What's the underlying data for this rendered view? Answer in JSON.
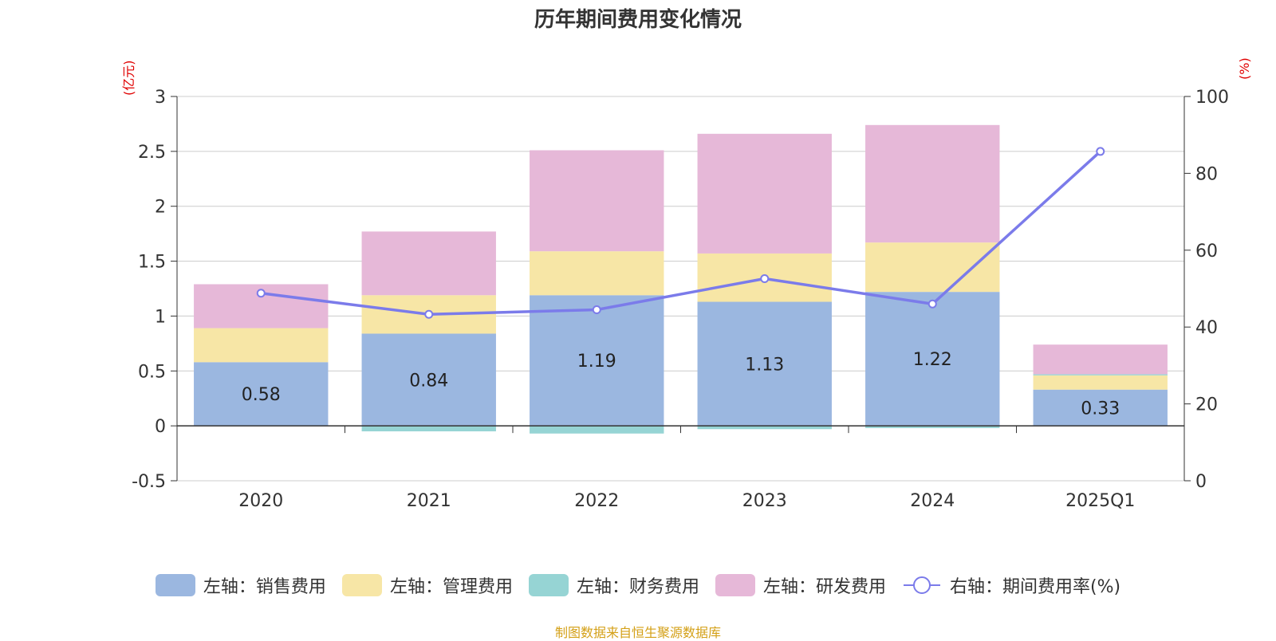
{
  "title": "历年期间费用变化情况",
  "left_unit": "(亿元)",
  "right_unit": "(%)",
  "source": "制图数据来自恒生聚源数据库",
  "legend": [
    {
      "label": "左轴：销售费用",
      "color": "#9bb7e0"
    },
    {
      "label": "左轴：管理费用",
      "color": "#f7e6a6"
    },
    {
      "label": "左轴：财务费用",
      "color": "#96d4d4"
    },
    {
      "label": "左轴：研发费用",
      "color": "#e6b8d8"
    },
    {
      "label": "右轴：期间费用率(%)",
      "color": "#7b7bea"
    }
  ],
  "chart_data": {
    "type": "bar",
    "stacked": true,
    "title": "历年期间费用变化情况",
    "categories": [
      "2020",
      "2021",
      "2022",
      "2023",
      "2024",
      "2025Q1"
    ],
    "series": [
      {
        "name": "左轴：销售费用",
        "axis": "left",
        "color": "#9bb7e0",
        "values": [
          0.58,
          0.84,
          1.19,
          1.13,
          1.22,
          0.33
        ],
        "labels": [
          "0.58",
          "0.84",
          "1.19",
          "1.13",
          "1.22",
          "0.33"
        ]
      },
      {
        "name": "左轴：管理费用",
        "axis": "left",
        "color": "#f7e6a6",
        "values": [
          0.31,
          0.35,
          0.4,
          0.44,
          0.45,
          0.13
        ]
      },
      {
        "name": "左轴：财务费用",
        "axis": "left",
        "color": "#96d4d4",
        "values": [
          0.0,
          -0.05,
          -0.07,
          -0.03,
          -0.02,
          0.01
        ]
      },
      {
        "name": "左轴：研发费用",
        "axis": "left",
        "color": "#e6b8d8",
        "values": [
          0.4,
          0.58,
          0.92,
          1.09,
          1.07,
          0.27
        ]
      },
      {
        "name": "右轴：期间费用率(%)",
        "axis": "right",
        "type": "line",
        "color": "#7b7bea",
        "values": [
          48.8,
          43.3,
          44.5,
          52.6,
          46.0,
          85.7
        ]
      }
    ],
    "y_left": {
      "min": -0.5,
      "max": 3,
      "ticks": [
        "-0.5",
        "0",
        "0.5",
        "1",
        "1.5",
        "2",
        "2.5",
        "3"
      ],
      "label": "(亿元)"
    },
    "y_right": {
      "min": 0,
      "max": 100,
      "ticks": [
        "0",
        "20",
        "40",
        "60",
        "80",
        "100"
      ],
      "label": "(%)"
    },
    "grid": true,
    "legend_position": "bottom"
  }
}
